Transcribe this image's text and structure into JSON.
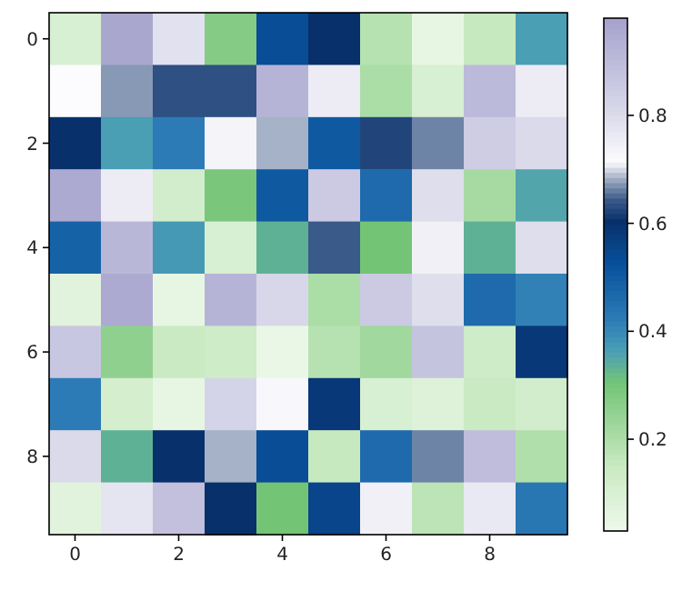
{
  "chart_data": {
    "type": "heatmap",
    "categories": [
      "0",
      null,
      "2",
      null,
      "4",
      null,
      "6",
      null,
      "8",
      null
    ],
    "y_categories": [
      "0",
      null,
      "2",
      null,
      "4",
      null,
      "6",
      null,
      "8",
      null
    ],
    "cells": [
      [
        0.1,
        0.96,
        0.78,
        0.27,
        0.53,
        0.6,
        0.18,
        0.05,
        0.15,
        0.36
      ],
      [
        0.71,
        0.67,
        0.63,
        0.63,
        0.92,
        0.75,
        0.2,
        0.1,
        0.9,
        0.75
      ],
      [
        0.6,
        0.36,
        0.42,
        0.73,
        0.68,
        0.5,
        0.62,
        0.66,
        0.84,
        0.8
      ],
      [
        0.95,
        0.75,
        0.12,
        0.29,
        0.5,
        0.85,
        0.46,
        0.79,
        0.21,
        0.35
      ],
      [
        0.48,
        0.91,
        0.37,
        0.1,
        0.33,
        0.64,
        0.3,
        0.74,
        0.33,
        0.79
      ],
      [
        0.07,
        0.95,
        0.05,
        0.92,
        0.81,
        0.2,
        0.85,
        0.79,
        0.46,
        0.41
      ],
      [
        0.86,
        0.25,
        0.14,
        0.13,
        0.04,
        0.18,
        0.22,
        0.87,
        0.13,
        0.58
      ],
      [
        0.42,
        0.11,
        0.05,
        0.82,
        0.72,
        0.58,
        0.1,
        0.08,
        0.14,
        0.12
      ],
      [
        0.8,
        0.33,
        0.6,
        0.68,
        0.53,
        0.15,
        0.46,
        0.66,
        0.89,
        0.19
      ],
      [
        0.07,
        0.77,
        0.88,
        0.6,
        0.3,
        0.55,
        0.74,
        0.17,
        0.76,
        0.43
      ]
    ],
    "clim": [
      0.03,
      0.98
    ],
    "cticks": [
      0.2,
      0.4,
      0.6,
      0.8
    ]
  }
}
